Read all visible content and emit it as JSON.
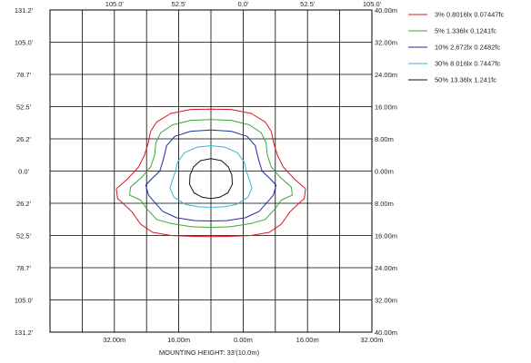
{
  "chart_data": {
    "type": "line",
    "xlabel": "MOUNTING HEIGHT: 33'(10.0m)",
    "x_ticks_top": [
      "105.0'",
      "52.5'",
      "0.0'",
      "52.5'",
      "105.0'"
    ],
    "x_ticks_bottom": [
      "32.00m",
      "16.00m",
      "0.00m",
      "16.00m",
      "32.00m"
    ],
    "y_ticks_left": [
      "131.2'",
      "105.0'",
      "78.7'",
      "52.5'",
      "26.2'",
      "0.0'",
      "26.2'",
      "52.5'",
      "78.7'",
      "105.0'",
      "131.2'"
    ],
    "y_ticks_right": [
      "40.00m",
      "32.00m",
      "24.00m",
      "16.00m",
      "8.00m",
      "0.00m",
      "8.00m",
      "16.00m",
      "24.00m",
      "32.00m",
      "40.00m"
    ],
    "xlim": [
      -40,
      40
    ],
    "ylim": [
      -40,
      40
    ],
    "grid": true,
    "legend_position": "top-right",
    "series": [
      {
        "name": "3% 0.8016lx 0.07447fc",
        "color": "#e0141e",
        "points": [
          [
            0,
            15.4
          ],
          [
            5,
            15.3
          ],
          [
            10,
            14.3
          ],
          [
            13.5,
            12.2
          ],
          [
            15,
            9.8
          ],
          [
            15.6,
            7
          ],
          [
            16.5,
            4
          ],
          [
            18,
            1
          ],
          [
            21,
            -2.2
          ],
          [
            23.5,
            -4.4
          ],
          [
            23.2,
            -6.8
          ],
          [
            21.2,
            -8.6
          ],
          [
            19.5,
            -10.3
          ],
          [
            17.5,
            -13.2
          ],
          [
            14.5,
            -15.2
          ],
          [
            10,
            -16
          ],
          [
            5,
            -16.2
          ],
          [
            0,
            -16.3
          ],
          [
            -5,
            -16.2
          ],
          [
            -10,
            -16
          ],
          [
            -14.5,
            -15.2
          ],
          [
            -17.5,
            -13.2
          ],
          [
            -19.5,
            -10.3
          ],
          [
            -21.2,
            -8.6
          ],
          [
            -23.2,
            -6.8
          ],
          [
            -23.5,
            -4.4
          ],
          [
            -21,
            -2.2
          ],
          [
            -18,
            1
          ],
          [
            -16.5,
            4
          ],
          [
            -15.6,
            7
          ],
          [
            -15,
            9.8
          ],
          [
            -13.5,
            12.2
          ],
          [
            -10,
            14.3
          ],
          [
            -5,
            15.3
          ],
          [
            0,
            15.4
          ]
        ]
      },
      {
        "name": "5% 1.336lx 0.1241fc",
        "color": "#3aa637",
        "points": [
          [
            0,
            12.8
          ],
          [
            5,
            12.6
          ],
          [
            9.5,
            11.5
          ],
          [
            12.5,
            9.5
          ],
          [
            13.7,
            7
          ],
          [
            14,
            4
          ],
          [
            15,
            1
          ],
          [
            17.2,
            -1.5
          ],
          [
            20,
            -4
          ],
          [
            20.2,
            -6
          ],
          [
            17.5,
            -7.2
          ],
          [
            16,
            -9.3
          ],
          [
            13.5,
            -12
          ],
          [
            10,
            -13
          ],
          [
            5,
            -13.8
          ],
          [
            0,
            -14
          ],
          [
            -5,
            -13.8
          ],
          [
            -10,
            -13
          ],
          [
            -13.5,
            -12
          ],
          [
            -16,
            -9.3
          ],
          [
            -17.5,
            -7.2
          ],
          [
            -20.2,
            -6
          ],
          [
            -20,
            -4
          ],
          [
            -17.2,
            -1.5
          ],
          [
            -15,
            1
          ],
          [
            -14,
            4
          ],
          [
            -13.7,
            7
          ],
          [
            -12.5,
            9.5
          ],
          [
            -9.5,
            11.5
          ],
          [
            -5,
            12.6
          ],
          [
            0,
            12.8
          ]
        ]
      },
      {
        "name": "10% 2.672lx 0.2482fc",
        "color": "#1e2f9e",
        "points": [
          [
            0,
            10.2
          ],
          [
            5,
            9.9
          ],
          [
            9,
            8.6
          ],
          [
            11,
            6.3
          ],
          [
            11.8,
            3
          ],
          [
            12.7,
            0
          ],
          [
            14.8,
            -2
          ],
          [
            16.2,
            -3.5
          ],
          [
            15.5,
            -6
          ],
          [
            14.2,
            -7.5
          ],
          [
            12,
            -10
          ],
          [
            8.5,
            -11.6
          ],
          [
            4,
            -12.3
          ],
          [
            0,
            -12.4
          ],
          [
            -4,
            -12.3
          ],
          [
            -8.5,
            -11.6
          ],
          [
            -12,
            -10
          ],
          [
            -14.2,
            -7.5
          ],
          [
            -15.5,
            -6
          ],
          [
            -16.2,
            -3.5
          ],
          [
            -14.8,
            -2
          ],
          [
            -12.7,
            0
          ],
          [
            -11.8,
            3
          ],
          [
            -11,
            6.3
          ],
          [
            -9,
            8.6
          ],
          [
            -5,
            9.9
          ],
          [
            0,
            10.2
          ]
        ]
      },
      {
        "name": "30% 8.016lx 0.7447fc",
        "color": "#36b8cc",
        "points": [
          [
            0,
            6.3
          ],
          [
            3.5,
            5.9
          ],
          [
            6.5,
            4.6
          ],
          [
            8.3,
            2.2
          ],
          [
            8.8,
            0
          ],
          [
            9.5,
            -2
          ],
          [
            10.2,
            -4.2
          ],
          [
            9.2,
            -6.5
          ],
          [
            6.3,
            -8.3
          ],
          [
            3,
            -8.9
          ],
          [
            0,
            -9
          ],
          [
            -3,
            -8.9
          ],
          [
            -6.3,
            -8.3
          ],
          [
            -9.2,
            -6.5
          ],
          [
            -10.2,
            -4.2
          ],
          [
            -9.5,
            -2
          ],
          [
            -8.8,
            0
          ],
          [
            -8.3,
            2.2
          ],
          [
            -6.5,
            4.6
          ],
          [
            -3.5,
            5.9
          ],
          [
            0,
            6.3
          ]
        ]
      },
      {
        "name": "50% 13.36lx 1.241fc",
        "color": "#111111",
        "points": [
          [
            0,
            3.1
          ],
          [
            2.6,
            2.6
          ],
          [
            4.3,
            1.1
          ],
          [
            5.2,
            -1
          ],
          [
            5.3,
            -3.3
          ],
          [
            4.2,
            -5.4
          ],
          [
            2.2,
            -6.5
          ],
          [
            0,
            -6.8
          ],
          [
            -2.2,
            -6.5
          ],
          [
            -4.2,
            -5.4
          ],
          [
            -5.3,
            -3.3
          ],
          [
            -5.2,
            -1
          ],
          [
            -4.3,
            1.1
          ],
          [
            -2.6,
            2.6
          ],
          [
            0,
            3.1
          ]
        ]
      }
    ]
  }
}
